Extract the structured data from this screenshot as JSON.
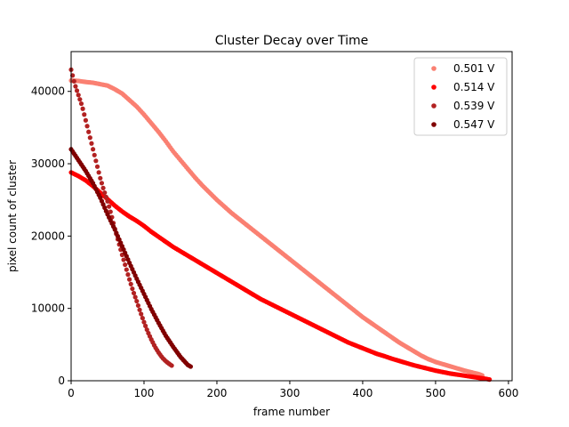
{
  "chart_data": {
    "type": "scatter",
    "title": "Cluster Decay over Time",
    "xlabel": "frame number",
    "ylabel": "pixel count of cluster",
    "xlim": [
      0,
      605
    ],
    "ylim": [
      0,
      45500
    ],
    "xticks": [
      0,
      100,
      200,
      300,
      400,
      500,
      600
    ],
    "yticks": [
      0,
      10000,
      20000,
      30000,
      40000
    ],
    "grid": false,
    "legend_position": "top-right",
    "series": [
      {
        "name": "0.501 V",
        "color": "#fa8072",
        "x_range": [
          0,
          565
        ],
        "points": [
          [
            0,
            41500
          ],
          [
            10,
            41450
          ],
          [
            20,
            41300
          ],
          [
            30,
            41200
          ],
          [
            40,
            41000
          ],
          [
            50,
            40800
          ],
          [
            60,
            40300
          ],
          [
            70,
            39700
          ],
          [
            80,
            38800
          ],
          [
            90,
            37900
          ],
          [
            100,
            36800
          ],
          [
            110,
            35600
          ],
          [
            120,
            34400
          ],
          [
            130,
            33100
          ],
          [
            140,
            31700
          ],
          [
            150,
            30500
          ],
          [
            160,
            29300
          ],
          [
            170,
            28100
          ],
          [
            180,
            27000
          ],
          [
            190,
            26000
          ],
          [
            200,
            25000
          ],
          [
            210,
            24100
          ],
          [
            220,
            23200
          ],
          [
            230,
            22400
          ],
          [
            240,
            21600
          ],
          [
            250,
            20800
          ],
          [
            260,
            20000
          ],
          [
            270,
            19200
          ],
          [
            280,
            18400
          ],
          [
            290,
            17600
          ],
          [
            300,
            16800
          ],
          [
            310,
            16000
          ],
          [
            320,
            15200
          ],
          [
            330,
            14400
          ],
          [
            340,
            13600
          ],
          [
            350,
            12800
          ],
          [
            360,
            12000
          ],
          [
            370,
            11200
          ],
          [
            380,
            10400
          ],
          [
            390,
            9600
          ],
          [
            400,
            8800
          ],
          [
            410,
            8100
          ],
          [
            420,
            7400
          ],
          [
            430,
            6700
          ],
          [
            440,
            6000
          ],
          [
            450,
            5300
          ],
          [
            460,
            4700
          ],
          [
            470,
            4100
          ],
          [
            480,
            3500
          ],
          [
            490,
            3000
          ],
          [
            500,
            2600
          ],
          [
            510,
            2300
          ],
          [
            520,
            2000
          ],
          [
            530,
            1700
          ],
          [
            540,
            1400
          ],
          [
            550,
            1150
          ],
          [
            560,
            900
          ],
          [
            565,
            700
          ]
        ]
      },
      {
        "name": "0.514 V",
        "color": "#ff0000",
        "x_range": [
          0,
          575
        ],
        "points": [
          [
            0,
            28800
          ],
          [
            10,
            28300
          ],
          [
            20,
            27700
          ],
          [
            30,
            26900
          ],
          [
            40,
            26000
          ],
          [
            50,
            25100
          ],
          [
            60,
            24200
          ],
          [
            70,
            23400
          ],
          [
            80,
            22700
          ],
          [
            90,
            22100
          ],
          [
            100,
            21400
          ],
          [
            110,
            20600
          ],
          [
            120,
            19900
          ],
          [
            130,
            19200
          ],
          [
            140,
            18500
          ],
          [
            150,
            17900
          ],
          [
            160,
            17300
          ],
          [
            170,
            16700
          ],
          [
            180,
            16100
          ],
          [
            190,
            15500
          ],
          [
            200,
            14900
          ],
          [
            210,
            14300
          ],
          [
            220,
            13700
          ],
          [
            230,
            13100
          ],
          [
            240,
            12500
          ],
          [
            250,
            11900
          ],
          [
            260,
            11300
          ],
          [
            270,
            10800
          ],
          [
            280,
            10300
          ],
          [
            290,
            9800
          ],
          [
            300,
            9300
          ],
          [
            310,
            8800
          ],
          [
            320,
            8300
          ],
          [
            330,
            7800
          ],
          [
            340,
            7300
          ],
          [
            350,
            6800
          ],
          [
            360,
            6300
          ],
          [
            370,
            5800
          ],
          [
            380,
            5300
          ],
          [
            390,
            4900
          ],
          [
            400,
            4500
          ],
          [
            410,
            4100
          ],
          [
            420,
            3700
          ],
          [
            430,
            3400
          ],
          [
            440,
            3050
          ],
          [
            450,
            2750
          ],
          [
            460,
            2450
          ],
          [
            470,
            2150
          ],
          [
            480,
            1900
          ],
          [
            490,
            1650
          ],
          [
            500,
            1400
          ],
          [
            510,
            1200
          ],
          [
            520,
            1000
          ],
          [
            530,
            850
          ],
          [
            540,
            700
          ],
          [
            550,
            550
          ],
          [
            560,
            400
          ],
          [
            570,
            250
          ],
          [
            575,
            150
          ]
        ]
      },
      {
        "name": "0.539 V",
        "color": "#b22222",
        "x_range": [
          0,
          138
        ],
        "points": [
          [
            0,
            43000
          ],
          [
            5,
            41000
          ],
          [
            10,
            39500
          ],
          [
            15,
            38000
          ],
          [
            20,
            36000
          ],
          [
            25,
            34000
          ],
          [
            30,
            32000
          ],
          [
            35,
            30000
          ],
          [
            40,
            28000
          ],
          [
            45,
            26300
          ],
          [
            50,
            24800
          ],
          [
            55,
            23000
          ],
          [
            60,
            21000
          ],
          [
            65,
            19200
          ],
          [
            70,
            17400
          ],
          [
            75,
            15700
          ],
          [
            80,
            14000
          ],
          [
            85,
            12400
          ],
          [
            90,
            11000
          ],
          [
            95,
            9500
          ],
          [
            100,
            8100
          ],
          [
            105,
            6800
          ],
          [
            110,
            5700
          ],
          [
            115,
            4700
          ],
          [
            120,
            3900
          ],
          [
            125,
            3200
          ],
          [
            130,
            2700
          ],
          [
            135,
            2300
          ],
          [
            138,
            2100
          ]
        ]
      },
      {
        "name": "0.547 V",
        "color": "#800000",
        "x_range": [
          0,
          165
        ],
        "points": [
          [
            0,
            32000
          ],
          [
            10,
            30500
          ],
          [
            20,
            29000
          ],
          [
            30,
            27300
          ],
          [
            40,
            25300
          ],
          [
            50,
            23000
          ],
          [
            60,
            20900
          ],
          [
            70,
            18600
          ],
          [
            80,
            16300
          ],
          [
            90,
            14100
          ],
          [
            100,
            12000
          ],
          [
            110,
            9900
          ],
          [
            120,
            8000
          ],
          [
            130,
            6200
          ],
          [
            140,
            4700
          ],
          [
            150,
            3300
          ],
          [
            160,
            2200
          ],
          [
            165,
            1900
          ]
        ]
      }
    ]
  }
}
